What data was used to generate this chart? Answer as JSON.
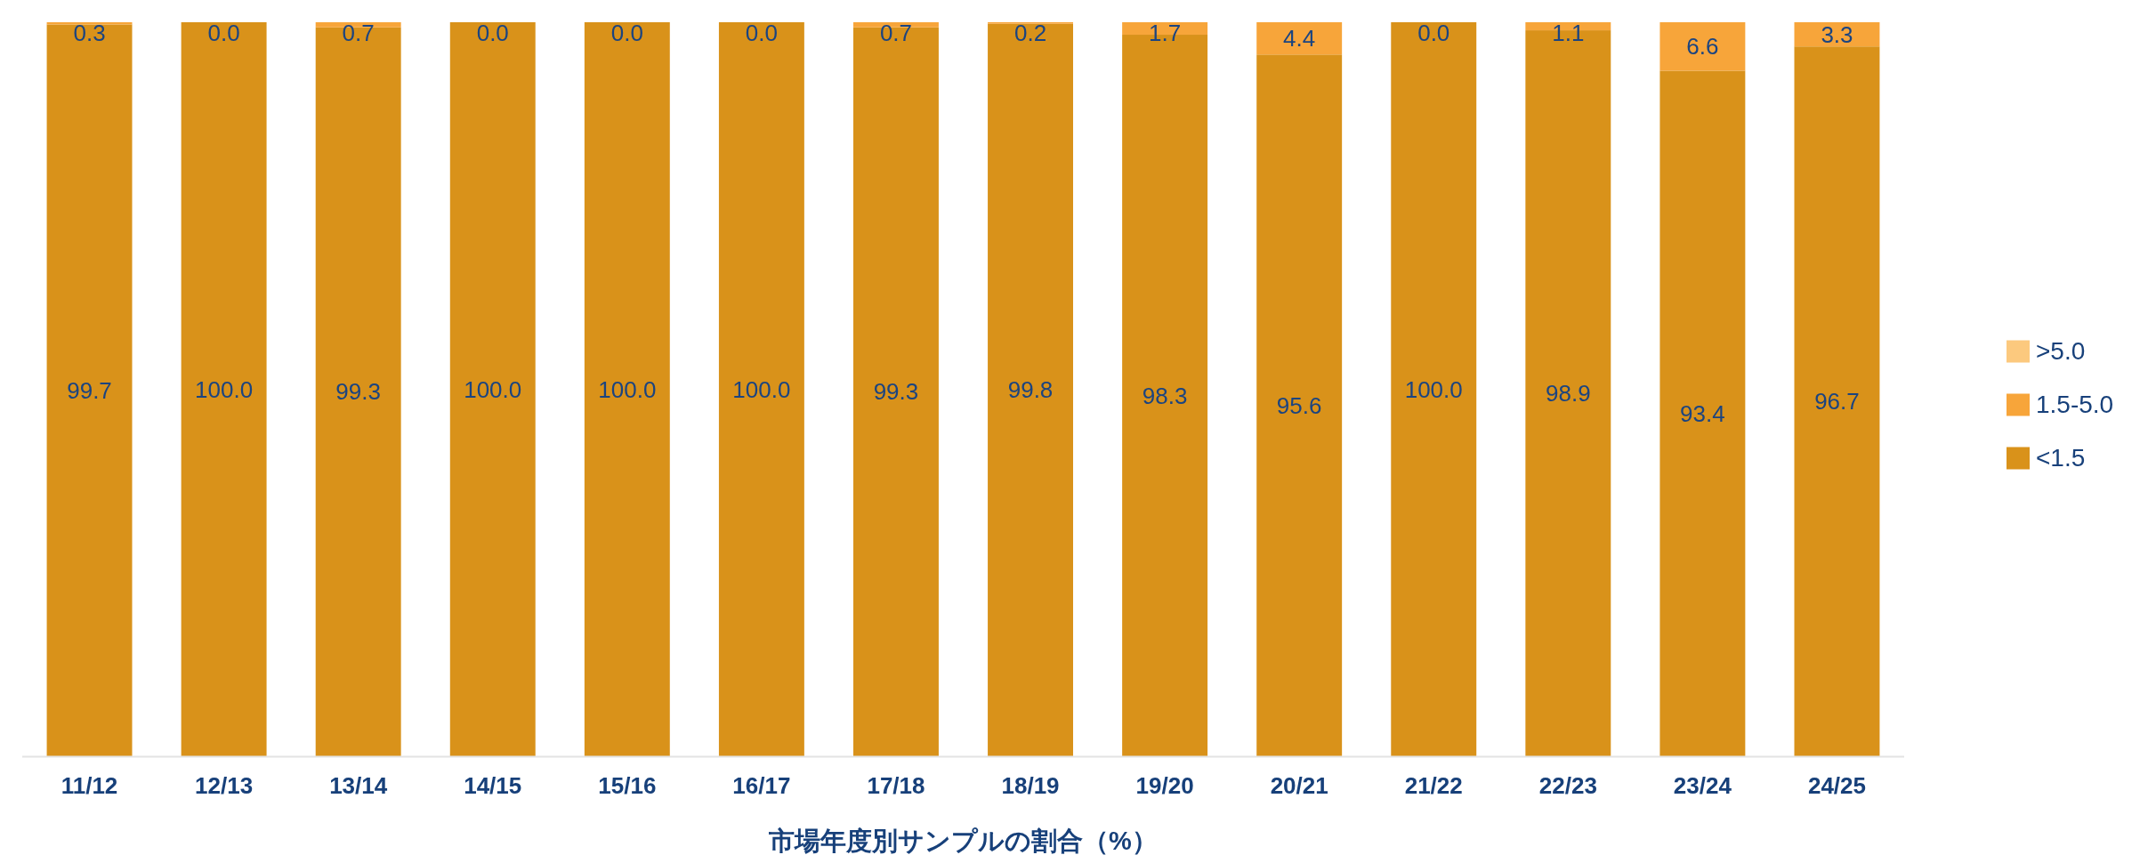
{
  "chart_data": {
    "type": "bar",
    "stacked": true,
    "xlabel": "市場年度別サンプルの割合（%）",
    "legend": "right",
    "categories": [
      "11/12",
      "12/13",
      "13/14",
      "14/15",
      "15/16",
      "16/17",
      "17/18",
      "18/19",
      "19/20",
      "20/21",
      "21/22",
      "22/23",
      "23/24",
      "24/25"
    ],
    "series": [
      {
        "name": "<1.5",
        "color": "#d9921a",
        "values": [
          99.7,
          100.0,
          99.3,
          100.0,
          100.0,
          100.0,
          99.3,
          99.8,
          98.3,
          95.6,
          100.0,
          98.9,
          93.4,
          96.7
        ],
        "value_labels": [
          "99.7",
          "100.0",
          "99.3",
          "100.0",
          "100.0",
          "100.0",
          "99.3",
          "99.8",
          "98.3",
          "95.6",
          "100.0",
          "98.9",
          "93.4",
          "96.7"
        ]
      },
      {
        "name": "1.5-5.0",
        "color": "#f7a53a",
        "values": [
          0.3,
          0.0,
          0.7,
          0.0,
          0.0,
          0.0,
          0.7,
          0.2,
          1.7,
          4.4,
          0.0,
          1.1,
          6.6,
          3.3
        ],
        "value_labels": [
          "0.3",
          "0.0",
          "0.7",
          "0.0",
          "0.0",
          "0.0",
          "0.7",
          "0.2",
          "1.7",
          "4.4",
          "0.0",
          "1.1",
          "6.6",
          "3.3"
        ]
      },
      {
        "name": ">5.0",
        "color": "#fcc97e",
        "values": [
          0,
          0,
          0,
          0,
          0,
          0,
          0,
          0,
          0,
          0,
          0,
          0,
          0,
          0
        ]
      }
    ]
  }
}
